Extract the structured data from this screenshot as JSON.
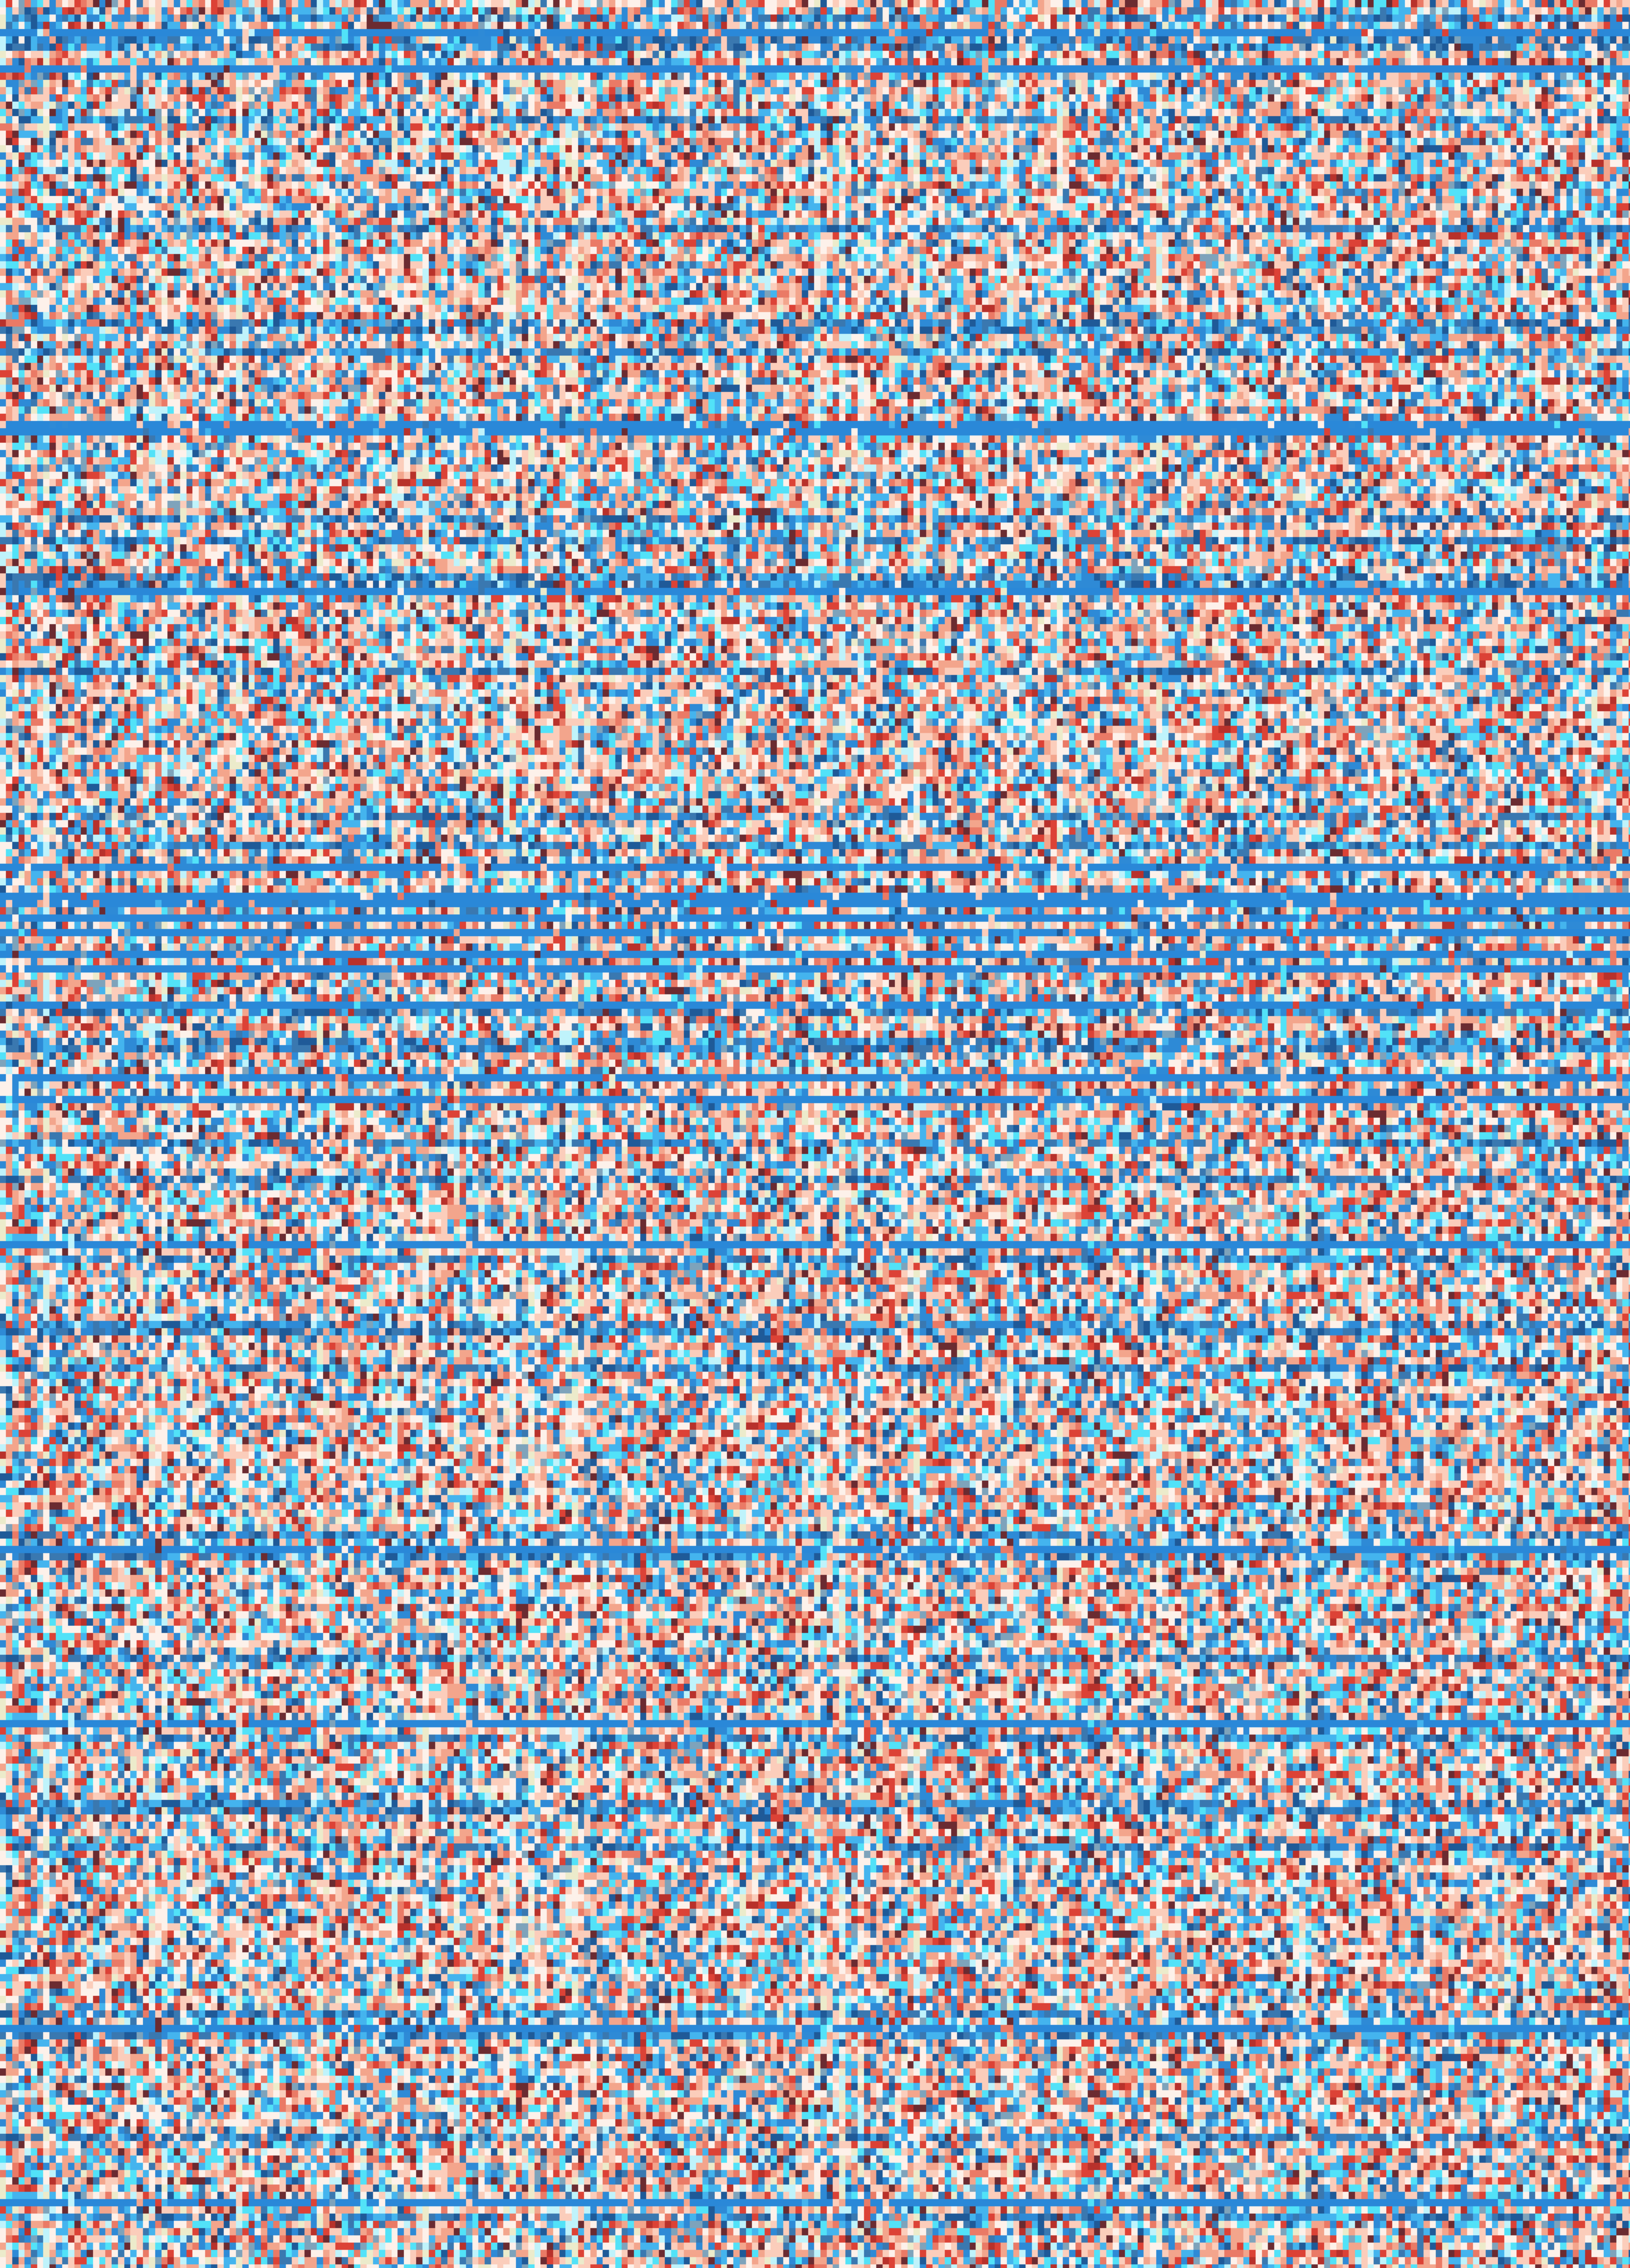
{
  "mosaic": {
    "palette": {
      "near_white": "#fdf1ea",
      "light_salmon": "#fbcdbb",
      "salmon": "#f3a58c",
      "coral": "#ea7a66",
      "red": "#dc4236",
      "dark_red": "#b8312b",
      "maroon": "#6b2b31",
      "cream": "#ecebcb",
      "light_cyan": "#bff3fb",
      "cyan": "#52e2f8",
      "sky_blue": "#44b4ee",
      "blue": "#2e8ad6",
      "steel_blue": "#3a78b0",
      "dark_blue": "#1f5a98",
      "grey_blue": "#7ea3bb"
    },
    "band_color": "#2a88d8"
  }
}
